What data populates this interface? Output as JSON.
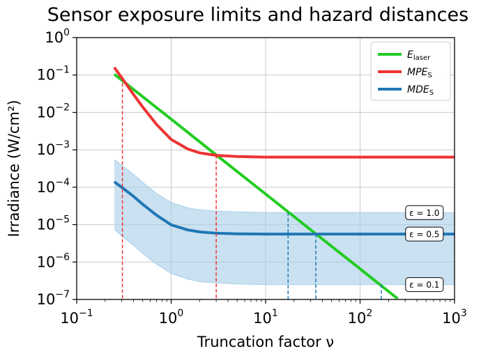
{
  "chart_data": {
    "type": "line",
    "title": "Sensor exposure limits and hazard distances",
    "xlabel": "Truncation factor ν",
    "ylabel": "Irradiance (W/cm²)",
    "x_scale": "log",
    "y_scale": "log",
    "xlim": [
      0.1,
      1000
    ],
    "ylim": [
      1e-07,
      1
    ],
    "grid": true,
    "legend_position": "top-right",
    "x_ticks": [
      {
        "value": 0.1,
        "base": "10",
        "exp": "−1"
      },
      {
        "value": 1,
        "base": "10",
        "exp": "0"
      },
      {
        "value": 10,
        "base": "10",
        "exp": "1"
      },
      {
        "value": 100,
        "base": "10",
        "exp": "2"
      },
      {
        "value": 1000,
        "base": "10",
        "exp": "3"
      }
    ],
    "y_ticks": [
      {
        "value": 1,
        "base": "10",
        "exp": "0"
      },
      {
        "value": 0.1,
        "base": "10",
        "exp": "−1"
      },
      {
        "value": 0.01,
        "base": "10",
        "exp": "−2"
      },
      {
        "value": 0.001,
        "base": "10",
        "exp": "−3"
      },
      {
        "value": 0.0001,
        "base": "10",
        "exp": "−4"
      },
      {
        "value": 1e-05,
        "base": "10",
        "exp": "−5"
      },
      {
        "value": 1e-06,
        "base": "10",
        "exp": "−6"
      },
      {
        "value": 1e-07,
        "base": "10",
        "exp": "−7"
      }
    ],
    "series": [
      {
        "key": "E_laser",
        "legend_main": "E",
        "legend_sub": "laser",
        "color": "#22cc22",
        "x": [
          0.25,
          1,
          3,
          10,
          30,
          100,
          250
        ],
        "y": [
          0.105,
          0.0066,
          0.00073,
          6.6e-05,
          7.3e-06,
          6.6e-07,
          1.05e-07
        ]
      },
      {
        "key": "MPE_S",
        "legend_main": "MPE",
        "legend_sub": "S",
        "color": "#ee3333",
        "x": [
          0.25,
          0.3,
          0.4,
          0.5,
          0.7,
          1,
          1.5,
          2,
          3,
          5,
          10,
          30,
          100,
          1000
        ],
        "y": [
          0.16,
          0.085,
          0.03,
          0.014,
          0.0048,
          0.0019,
          0.00105,
          0.00083,
          0.00071,
          0.000665,
          0.00064,
          0.00064,
          0.00064,
          0.00064
        ]
      },
      {
        "key": "MDE_S",
        "legend_main": "MDE",
        "legend_sub": "S",
        "color": "#1f77b4",
        "x": [
          0.25,
          0.3,
          0.4,
          0.5,
          0.7,
          1,
          1.5,
          2,
          3,
          5,
          10,
          30,
          100,
          1000
        ],
        "y": [
          0.00014,
          0.0001,
          5.7e-05,
          3.5e-05,
          1.8e-05,
          9.9e-06,
          7.2e-06,
          6.4e-06,
          5.9e-06,
          5.7e-06,
          5.6e-06,
          5.6e-06,
          5.6e-06,
          5.6e-06
        ]
      }
    ],
    "band": {
      "color": "#a6cde8",
      "x": [
        0.25,
        0.3,
        0.4,
        0.5,
        0.7,
        1,
        1.5,
        2,
        3,
        5,
        10,
        30,
        100,
        1000
      ],
      "upper": [
        0.00055,
        0.00039,
        0.00022,
        0.000135,
        6.8e-05,
        3.9e-05,
        2.8e-05,
        2.5e-05,
        2.3e-05,
        2.2e-05,
        2.1e-05,
        2.1e-05,
        2.1e-05,
        2.1e-05
      ],
      "lower": [
        7.5e-06,
        5e-06,
        2.8e-06,
        1.7e-06,
        8.8e-07,
        5e-07,
        3.5e-07,
        3e-07,
        2.8e-07,
        2.6e-07,
        2.5e-07,
        2.5e-07,
        2.5e-07,
        2.5e-07
      ]
    },
    "vertical_markers": [
      {
        "x": 0.305,
        "top": 0.085,
        "color": "#ee3333"
      },
      {
        "x": 3.0,
        "top": 0.00071,
        "color": "#ee3333"
      },
      {
        "x": 17.3,
        "top": 2.1e-05,
        "color": "#1f77b4"
      },
      {
        "x": 34,
        "top": 5.6e-06,
        "color": "#1f77b4"
      },
      {
        "x": 168,
        "top": 2.5e-07,
        "color": "#1f77b4"
      }
    ],
    "annotations": [
      {
        "label": "ε = 1.0",
        "x": 480,
        "y": 2.1e-05
      },
      {
        "label": "ε = 0.5",
        "x": 480,
        "y": 5.6e-06
      },
      {
        "label": "ε = 0.1",
        "x": 480,
        "y": 2.5e-07
      }
    ]
  }
}
